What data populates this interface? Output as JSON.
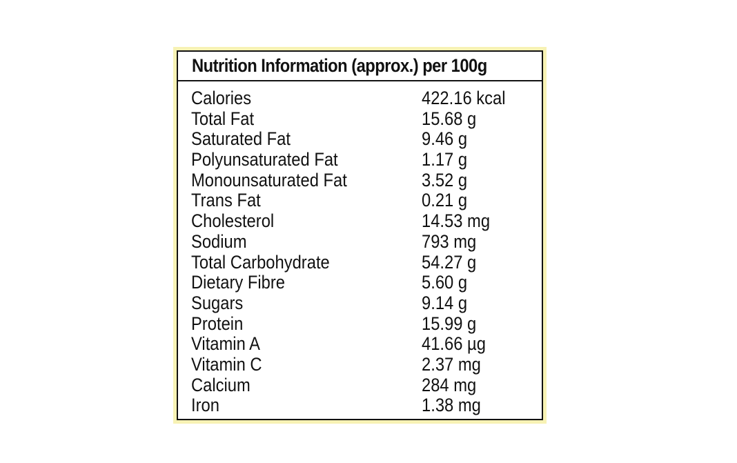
{
  "label": {
    "title": "Nutrition Information (approx.) per 100g",
    "rows": [
      {
        "name": "Calories",
        "value": "422.16 kcal"
      },
      {
        "name": "Total Fat",
        "value": "15.68 g"
      },
      {
        "name": "Saturated Fat",
        "value": "9.46 g"
      },
      {
        "name": "Polyunsaturated Fat",
        "value": "1.17 g"
      },
      {
        "name": "Monounsaturated Fat",
        "value": "3.52 g"
      },
      {
        "name": "Trans Fat",
        "value": "0.21 g"
      },
      {
        "name": "Cholesterol",
        "value": "14.53 mg"
      },
      {
        "name": "Sodium",
        "value": "793 mg"
      },
      {
        "name": "Total Carbohydrate",
        "value": "54.27 g"
      },
      {
        "name": "Dietary Fibre",
        "value": "5.60 g"
      },
      {
        "name": "Sugars",
        "value": "9.14 g"
      },
      {
        "name": "Protein",
        "value": "15.99 g"
      },
      {
        "name": "Vitamin A",
        "value": "41.66 µg"
      },
      {
        "name": "Vitamin C",
        "value": "2.37 mg"
      },
      {
        "name": "Calcium",
        "value": "284 mg"
      },
      {
        "name": "Iron",
        "value": "1.38 mg"
      }
    ]
  },
  "colors": {
    "frame": "#f7f2b4",
    "border": "#111111",
    "text": "#111111",
    "background": "#ffffff"
  }
}
